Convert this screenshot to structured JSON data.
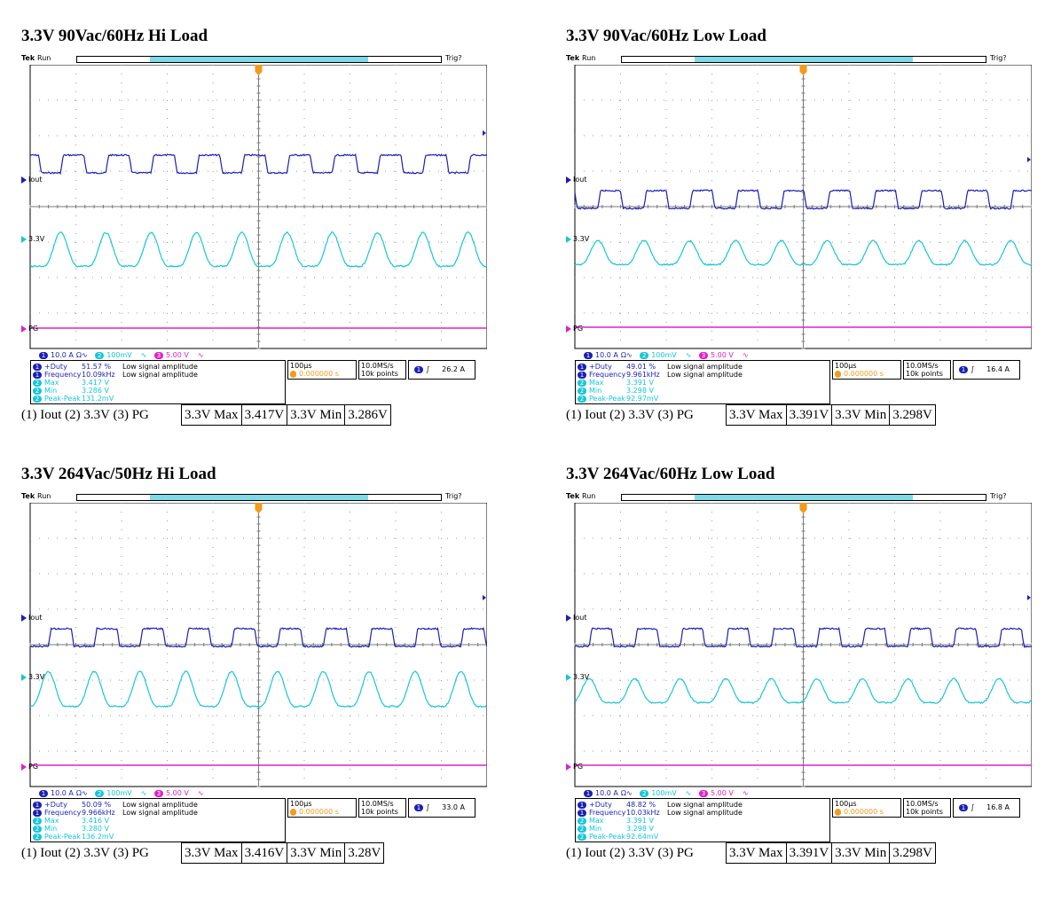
{
  "panels": [
    {
      "title": "3.3V 90Vac/60Hz Hi Load",
      "tek": "Tek",
      "run": "Run",
      "trig": "Trig?",
      "ch_labels": {
        "iout": "Iout",
        "v33": "3.3V",
        "pg": "PG"
      },
      "chips": {
        "c1": "1",
        "c1_scale": "10.0 A",
        "c1_unit": "Ω∿",
        "c2": "2",
        "c2_scale": "100mV",
        "c2_unit": "∿",
        "c3": "3",
        "c3_scale": "5.00 V",
        "c3_unit": "∿"
      },
      "measurements": [
        {
          "ch": "1",
          "label": "+Duty",
          "value": "51.57 %",
          "note": "Low signal amplitude"
        },
        {
          "ch": "1",
          "label": "Frequency",
          "value": "10.09kHz",
          "note": "Low signal amplitude"
        },
        {
          "ch": "2",
          "label": "Max",
          "value": "3.417 V",
          "note": ""
        },
        {
          "ch": "2",
          "label": "Min",
          "value": "3.286 V",
          "note": ""
        },
        {
          "ch": "2",
          "label": "Peak-Peak",
          "value": "131.2mV",
          "note": ""
        }
      ],
      "timebase": "100µs",
      "trig_pos": "0.000000 s",
      "samplerate": "10.0MS/s",
      "points": "10k points",
      "trig_ch": "1",
      "trig_level": "26.2 A",
      "summary": {
        "caption": "(1) Iout (2) 3.3V (3) PG",
        "max_label": "3.3V Max",
        "max_value": "3.417V",
        "min_label": "3.3V Min",
        "min_value": "3.286V"
      }
    },
    {
      "title": "3.3V 90Vac/60Hz Low Load",
      "tek": "Tek",
      "run": "Run",
      "trig": "Trig?",
      "ch_labels": {
        "iout": "Iout",
        "v33": "3.3V",
        "pg": "PG"
      },
      "chips": {
        "c1": "1",
        "c1_scale": "10.0 A",
        "c1_unit": "Ω∿",
        "c2": "2",
        "c2_scale": "100mV",
        "c2_unit": "∿",
        "c3": "3",
        "c3_scale": "5.00 V",
        "c3_unit": "∿"
      },
      "measurements": [
        {
          "ch": "1",
          "label": "+Duty",
          "value": "49.01 %",
          "note": "Low signal amplitude"
        },
        {
          "ch": "1",
          "label": "Frequency",
          "value": "9.961kHz",
          "note": "Low signal amplitude"
        },
        {
          "ch": "2",
          "label": "Max",
          "value": "3.391 V",
          "note": ""
        },
        {
          "ch": "2",
          "label": "Min",
          "value": "3.298 V",
          "note": ""
        },
        {
          "ch": "2",
          "label": "Peak-Peak",
          "value": "92.97mV",
          "note": ""
        }
      ],
      "timebase": "100µs",
      "trig_pos": "0.000000 s",
      "samplerate": "10.0MS/s",
      "points": "10k points",
      "trig_ch": "1",
      "trig_level": "16.4 A",
      "summary": {
        "caption": "(1) Iout (2) 3.3V (3) PG",
        "max_label": "3.3V Max",
        "max_value": "3.391V",
        "min_label": "3.3V Min",
        "min_value": "3.298V"
      }
    },
    {
      "title": "3.3V 264Vac/50Hz Hi Load",
      "tek": "Tek",
      "run": "Run",
      "trig": "Trig?",
      "ch_labels": {
        "iout": "Iout",
        "v33": "3.3V",
        "pg": "PG"
      },
      "chips": {
        "c1": "1",
        "c1_scale": "10.0 A",
        "c1_unit": "Ω∿",
        "c2": "2",
        "c2_scale": "100mV",
        "c2_unit": "∿",
        "c3": "3",
        "c3_scale": "5.00 V",
        "c3_unit": "∿"
      },
      "measurements": [
        {
          "ch": "1",
          "label": "+Duty",
          "value": "50.09 %",
          "note": "Low signal amplitude"
        },
        {
          "ch": "1",
          "label": "Frequency",
          "value": "9.966kHz",
          "note": "Low signal amplitude"
        },
        {
          "ch": "2",
          "label": "Max",
          "value": "3.416 V",
          "note": ""
        },
        {
          "ch": "2",
          "label": "Min",
          "value": "3.280 V",
          "note": ""
        },
        {
          "ch": "2",
          "label": "Peak-Peak",
          "value": "136.2mV",
          "note": ""
        }
      ],
      "timebase": "100µs",
      "trig_pos": "0.000000 s",
      "samplerate": "10.0MS/s",
      "points": "10k points",
      "trig_ch": "1",
      "trig_level": "33.0 A",
      "summary": {
        "caption": "(1) Iout (2) 3.3V (3) PG",
        "max_label": "3.3V Max",
        "max_value": "3.416V",
        "min_label": "3.3V Min",
        "min_value": "3.28V"
      }
    },
    {
      "title": "3.3V 264Vac/60Hz Low Load",
      "tek": "Tek",
      "run": "Run",
      "trig": "Trig?",
      "ch_labels": {
        "iout": "Iout",
        "v33": "3.3V",
        "pg": "PG"
      },
      "chips": {
        "c1": "1",
        "c1_scale": "10.0 A",
        "c1_unit": "Ω∿",
        "c2": "2",
        "c2_scale": "100mV",
        "c2_unit": "∿",
        "c3": "3",
        "c3_scale": "5.00 V",
        "c3_unit": "∿"
      },
      "measurements": [
        {
          "ch": "1",
          "label": "+Duty",
          "value": "48.82 %",
          "note": "Low signal amplitude"
        },
        {
          "ch": "1",
          "label": "Frequency",
          "value": "10.03kHz",
          "note": "Low signal amplitude"
        },
        {
          "ch": "2",
          "label": "Max",
          "value": "3.391 V",
          "note": ""
        },
        {
          "ch": "2",
          "label": "Min",
          "value": "3.298 V",
          "note": ""
        },
        {
          "ch": "2",
          "label": "Peak-Peak",
          "value": "92.64mV",
          "note": ""
        }
      ],
      "timebase": "100µs",
      "trig_pos": "0.000000 s",
      "samplerate": "10.0MS/s",
      "points": "10k points",
      "trig_ch": "1",
      "trig_level": "16.8 A",
      "summary": {
        "caption": "(1) Iout (2) 3.3V (3) PG",
        "max_label": "3.3V Max",
        "max_value": "3.391V",
        "min_label": "3.3V Min",
        "min_value": "3.298V"
      }
    }
  ],
  "chart_data": [
    {
      "type": "line",
      "title": "3.3V 90Vac/60Hz Hi Load",
      "xlim": [
        -500,
        500
      ],
      "x_unit": "µs",
      "series": [
        {
          "name": "Iout",
          "color": "#1a1fb5",
          "kind": "square",
          "frequency_khz": 10.09,
          "duty": 51.57
        },
        {
          "name": "3.3V",
          "color": "#16c6d8",
          "kind": "ripple",
          "frequency_khz": 10.09,
          "max_v": 3.417,
          "min_v": 3.286
        },
        {
          "name": "PG",
          "color": "#e020c8",
          "kind": "flat"
        }
      ]
    },
    {
      "type": "line",
      "title": "3.3V 90Vac/60Hz Low Load",
      "xlim": [
        -500,
        500
      ],
      "x_unit": "µs",
      "series": [
        {
          "name": "Iout",
          "color": "#1a1fb5",
          "kind": "square",
          "frequency_khz": 9.961,
          "duty": 49.01
        },
        {
          "name": "3.3V",
          "color": "#16c6d8",
          "kind": "ripple",
          "frequency_khz": 9.961,
          "max_v": 3.391,
          "min_v": 3.298
        },
        {
          "name": "PG",
          "color": "#e020c8",
          "kind": "flat"
        }
      ]
    },
    {
      "type": "line",
      "title": "3.3V 264Vac/50Hz Hi Load",
      "xlim": [
        -500,
        500
      ],
      "x_unit": "µs",
      "series": [
        {
          "name": "Iout",
          "color": "#1a1fb5",
          "kind": "square",
          "frequency_khz": 9.966,
          "duty": 50.09
        },
        {
          "name": "3.3V",
          "color": "#16c6d8",
          "kind": "ripple",
          "frequency_khz": 9.966,
          "max_v": 3.416,
          "min_v": 3.28
        },
        {
          "name": "PG",
          "color": "#e020c8",
          "kind": "flat"
        }
      ]
    },
    {
      "type": "line",
      "title": "3.3V 264Vac/60Hz Low Load",
      "xlim": [
        -500,
        500
      ],
      "x_unit": "µs",
      "series": [
        {
          "name": "Iout",
          "color": "#1a1fb5",
          "kind": "square",
          "frequency_khz": 10.03,
          "duty": 48.82
        },
        {
          "name": "3.3V",
          "color": "#16c6d8",
          "kind": "ripple",
          "frequency_khz": 10.03,
          "max_v": 3.391,
          "min_v": 3.298
        },
        {
          "name": "PG",
          "color": "#e020c8",
          "kind": "flat"
        }
      ]
    }
  ],
  "colors": {
    "ch1": "#1a1fb5",
    "ch2": "#16c6d8",
    "ch3": "#e020c8",
    "trigger": "#f29b1d",
    "grid": "#9a9a9a"
  }
}
